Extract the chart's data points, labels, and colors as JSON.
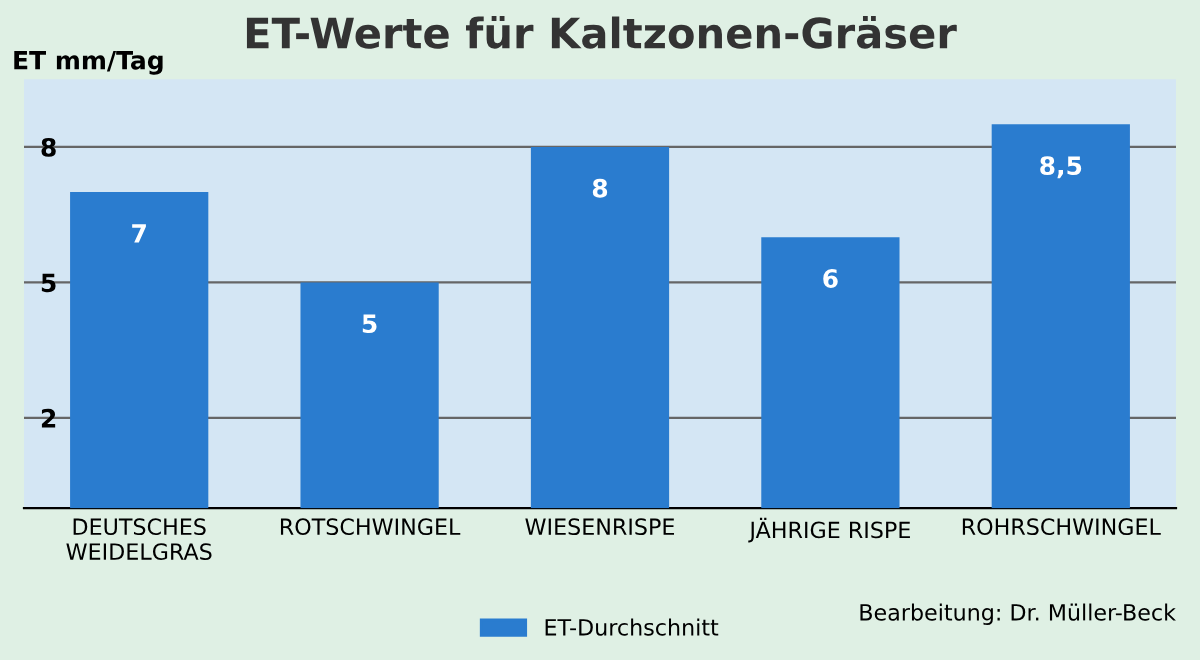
{
  "chart_data": {
    "type": "bar",
    "title": "ET-Werte für Kaltzonen-Gräser",
    "ylabel": "ET mm/Tag",
    "categories": [
      "DEUTSCHES\nWEIDELGRAS",
      "ROTSCHWINGEL",
      "WIESENRISPE",
      "JÄHRIGE RISPE",
      "ROHRSCHWINGEL"
    ],
    "series": [
      {
        "name": "ET-Durchschnitt",
        "color": "#2a7ccf",
        "values": [
          7,
          5,
          8,
          6,
          8.5
        ]
      }
    ],
    "value_labels": [
      "7",
      "5",
      "8",
      "6",
      "8,5"
    ],
    "ylim": [
      0,
      9.5
    ],
    "yticks": [
      2,
      5,
      8
    ],
    "grid": "y",
    "legend": "bottom",
    "annotations": [
      "Bearbeitung: Dr. Müller-Beck"
    ]
  }
}
